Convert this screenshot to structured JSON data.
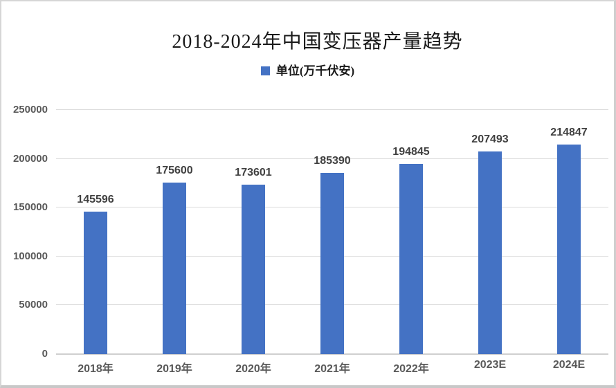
{
  "title": "2018-2024年中国变压器产量趋势",
  "legend": {
    "label": "单位(万千伏安)",
    "marker_color": "#4472C4"
  },
  "chart_data": {
    "type": "bar",
    "title": "2018-2024年中国变压器产量趋势",
    "categories": [
      "2018年",
      "2019年",
      "2020年",
      "2021年",
      "2022年",
      "2023E",
      "2024E"
    ],
    "values": [
      145596,
      175600,
      173601,
      185390,
      194845,
      207493,
      214847
    ],
    "series_name": "单位(万千伏安)",
    "xlabel": "",
    "ylabel": "",
    "ylim": [
      0,
      250000
    ],
    "yticks": [
      0,
      50000,
      100000,
      150000,
      200000,
      250000
    ],
    "grid": true,
    "legend_position": "top-center",
    "data_labels": true,
    "bar_color": "#4472C4"
  },
  "colors": {
    "bar": "#4472C4",
    "data_label": "#404040",
    "axis_label": "#595959",
    "gridline": "#dcdcdc",
    "frame_border": "#d6d6d6"
  }
}
